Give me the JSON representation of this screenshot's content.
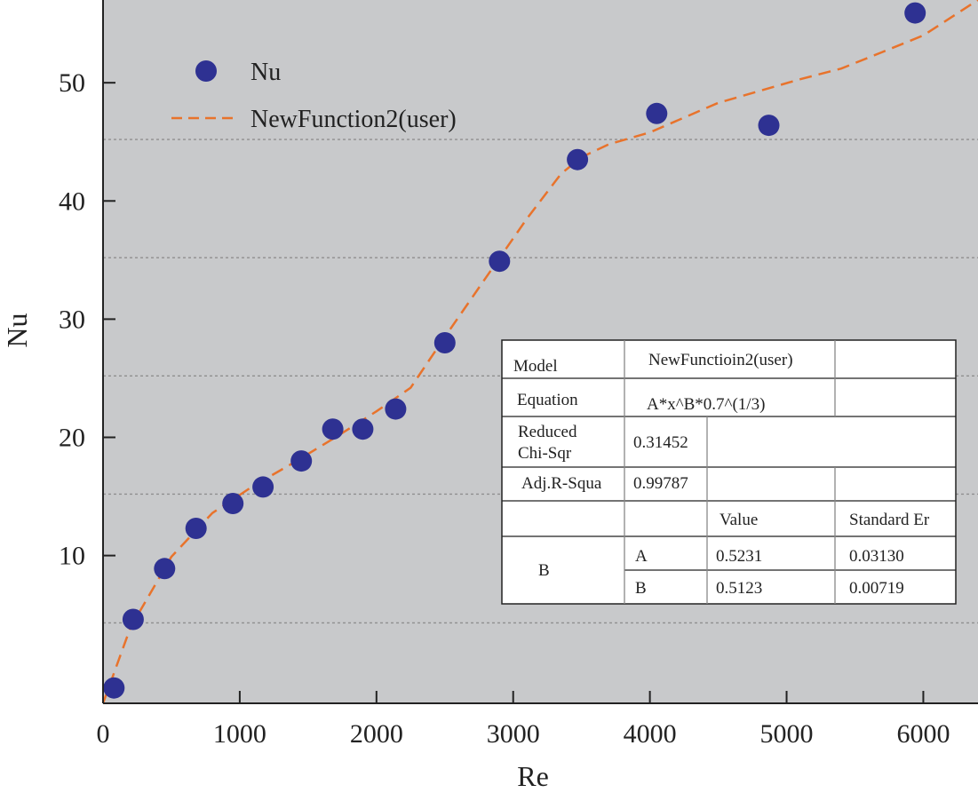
{
  "chart_data": {
    "type": "scatter",
    "xlabel": "Re",
    "ylabel": "Nu",
    "xlim": [
      0,
      6400
    ],
    "ylim": [
      -2.5,
      57
    ],
    "x_ticks": [
      0,
      1000,
      2000,
      3000,
      4000,
      5000,
      6000
    ],
    "y_ticks": [
      10,
      20,
      30,
      40,
      50
    ],
    "grid_lines_y": [
      4.3,
      15.2,
      25.2,
      35.2,
      45.2
    ],
    "colors": {
      "plot_bg": "#c8c9cb",
      "points": "#2e3192",
      "fit": "#e8732c",
      "grid": "#8f8f8f"
    },
    "series": [
      {
        "name": "Nu",
        "kind": "scatter",
        "x": [
          80,
          220,
          450,
          680,
          950,
          1170,
          1450,
          1680,
          1900,
          2140,
          2500,
          2900,
          3470,
          4050,
          4870,
          5940
        ],
        "y": [
          -1.2,
          4.6,
          8.9,
          12.3,
          14.4,
          15.8,
          18.0,
          20.7,
          20.7,
          22.4,
          28.0,
          34.9,
          43.5,
          47.4,
          46.4,
          55.9
        ]
      },
      {
        "name": "NewFunction2(user)",
        "kind": "line",
        "style": "dashed",
        "x": [
          0,
          200,
          500,
          800,
          1100,
          1400,
          1700,
          2000,
          2250,
          2500,
          2800,
          3100,
          3350,
          3500,
          3700,
          4000,
          4300,
          4500,
          4800,
          5100,
          5400,
          5700,
          6000,
          6400
        ],
        "y": [
          -2.5,
          3.9,
          9.9,
          13.6,
          15.9,
          17.9,
          20.0,
          22.2,
          24.2,
          28.5,
          33.5,
          38.5,
          42.3,
          43.7,
          44.8,
          45.8,
          47.3,
          48.3,
          49.3,
          50.3,
          51.2,
          52.6,
          54.0,
          57.0
        ]
      }
    ],
    "legend": {
      "position": "top-left",
      "entries": [
        {
          "label": "Nu",
          "marker": "circle"
        },
        {
          "label": "NewFunction2(user)",
          "marker": "dashed-line"
        }
      ]
    },
    "fit_table": {
      "model_label": "Model",
      "model_value": "NewFunctioin2(user)",
      "equation_label": "Equation",
      "equation_value": "A*x^B*0.7^(1/3)",
      "chi_label_1": "Reduced",
      "chi_label_2": "Chi-Sqr",
      "chi_value": "0.31452",
      "r2_label": "Adj.R-Squa",
      "r2_value": "0.99787",
      "col_value": "Value",
      "col_stderr": "Standard Er",
      "group_label": "B",
      "rows": [
        {
          "param": "A",
          "value": "0.5231",
          "stderr": "0.03130"
        },
        {
          "param": "B",
          "value": "0.5123",
          "stderr": "0.00719"
        }
      ]
    }
  }
}
